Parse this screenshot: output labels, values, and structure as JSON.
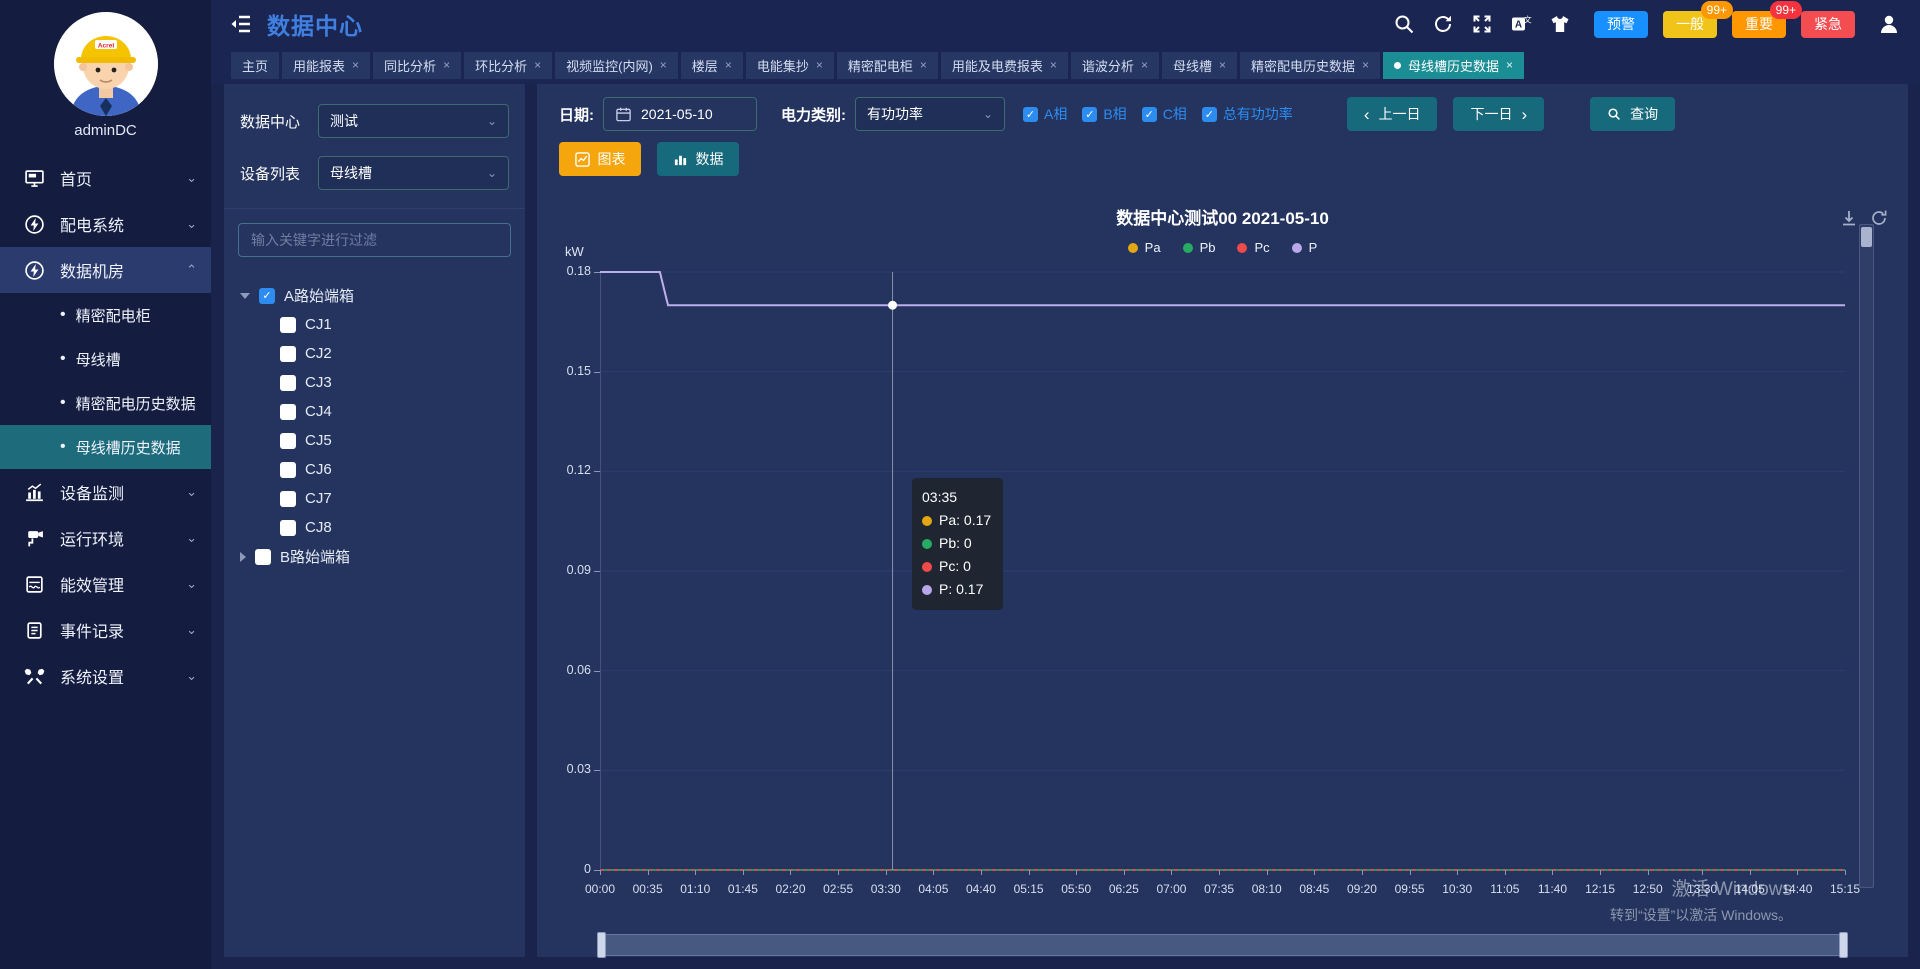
{
  "header": {
    "title": "数据中心",
    "alarm_buttons": [
      {
        "label": "预警",
        "color": "#1890ff"
      },
      {
        "label": "一般",
        "color": "#f0c419",
        "badge": "99+",
        "badge_color": "#ff9800"
      },
      {
        "label": "重要",
        "color": "#ff9800",
        "badge": "99+",
        "badge_color": "#f5333f"
      },
      {
        "label": "紧急",
        "color": "#f34d51"
      }
    ]
  },
  "tabs": [
    {
      "label": "主页",
      "closable": false,
      "active": false
    },
    {
      "label": "用能报表",
      "closable": true,
      "active": false
    },
    {
      "label": "同比分析",
      "closable": true,
      "active": false
    },
    {
      "label": "环比分析",
      "closable": true,
      "active": false
    },
    {
      "label": "视频监控(内网)",
      "closable": true,
      "active": false
    },
    {
      "label": "楼层",
      "closable": true,
      "active": false
    },
    {
      "label": "电能集抄",
      "closable": true,
      "active": false
    },
    {
      "label": "精密配电柜",
      "closable": true,
      "active": false
    },
    {
      "label": "用能及电费报表",
      "closable": true,
      "active": false
    },
    {
      "label": "谐波分析",
      "closable": true,
      "active": false
    },
    {
      "label": "母线槽",
      "closable": true,
      "active": false
    },
    {
      "label": "精密配电历史数据",
      "closable": true,
      "active": false
    },
    {
      "label": "母线槽历史数据",
      "closable": true,
      "active": true
    }
  ],
  "sidebar": {
    "username": "adminDC",
    "menu": [
      {
        "label": "首页",
        "icon": "home",
        "expanded": false
      },
      {
        "label": "配电系统",
        "icon": "power",
        "expanded": false
      },
      {
        "label": "数据机房",
        "icon": "power",
        "expanded": true,
        "children": [
          "精密配电柜",
          "母线槽",
          "精密配电历史数据",
          "母线槽历史数据"
        ],
        "active_child": "母线槽历史数据"
      },
      {
        "label": "设备监测",
        "icon": "chart",
        "expanded": false
      },
      {
        "label": "运行环境",
        "icon": "env",
        "expanded": false
      },
      {
        "label": "能效管理",
        "icon": "energy",
        "expanded": false
      },
      {
        "label": "事件记录",
        "icon": "record",
        "expanded": false
      },
      {
        "label": "系统设置",
        "icon": "settings",
        "expanded": false
      }
    ]
  },
  "device_panel": {
    "rows": [
      {
        "label": "数据中心",
        "value": "测试"
      },
      {
        "label": "设备列表",
        "value": "母线槽"
      }
    ],
    "search_placeholder": "输入关键字进行过滤",
    "tree": [
      {
        "label": "A路始端箱",
        "checked": true,
        "expanded": true,
        "children": [
          "CJ1",
          "CJ2",
          "CJ3",
          "CJ4",
          "CJ5",
          "CJ6",
          "CJ7",
          "CJ8"
        ]
      },
      {
        "label": "B路始端箱",
        "checked": false,
        "expanded": false,
        "children": []
      }
    ]
  },
  "toolbar": {
    "date_label": "日期:",
    "date_value": "2021-05-10",
    "type_label": "电力类别:",
    "type_value": "有功功率",
    "phases": [
      "A相",
      "B相",
      "C相",
      "总有功功率"
    ],
    "prev_button": "上一日",
    "next_button": "下一日",
    "query_button": "查询",
    "chart_view_button": "图表",
    "data_view_button": "数据"
  },
  "chart_data": {
    "type": "line",
    "title": "数据中心测试00  2021-05-10",
    "ylabel": "kW",
    "ylim": [
      0,
      0.18
    ],
    "y_ticks": [
      {
        "label": "0.18",
        "value": 0.18
      },
      {
        "label": "0.15",
        "value": 0.15
      },
      {
        "label": "0.12",
        "value": 0.12
      },
      {
        "label": "0.09",
        "value": 0.09
      },
      {
        "label": "0.06",
        "value": 0.06
      },
      {
        "label": "0.03",
        "value": 0.03
      },
      {
        "label": "0",
        "value": 0
      }
    ],
    "x_total_minutes": 915,
    "x_labels": [
      {
        "label": "00:00",
        "m": 0
      },
      {
        "label": "00:35",
        "m": 35
      },
      {
        "label": "01:10",
        "m": 70
      },
      {
        "label": "01:45",
        "m": 105
      },
      {
        "label": "02:20",
        "m": 140
      },
      {
        "label": "02:55",
        "m": 175
      },
      {
        "label": "03:30",
        "m": 210
      },
      {
        "label": "04:05",
        "m": 245
      },
      {
        "label": "04:40",
        "m": 280
      },
      {
        "label": "05:15",
        "m": 315
      },
      {
        "label": "05:50",
        "m": 350
      },
      {
        "label": "06:25",
        "m": 385
      },
      {
        "label": "07:00",
        "m": 420
      },
      {
        "label": "07:35",
        "m": 455
      },
      {
        "label": "08:10",
        "m": 490
      },
      {
        "label": "08:45",
        "m": 525
      },
      {
        "label": "09:20",
        "m": 560
      },
      {
        "label": "09:55",
        "m": 595
      },
      {
        "label": "10:30",
        "m": 630
      },
      {
        "label": "11:05",
        "m": 665
      },
      {
        "label": "11:40",
        "m": 700
      },
      {
        "label": "12:15",
        "m": 735
      },
      {
        "label": "12:50",
        "m": 770
      },
      {
        "label": "13:30",
        "m": 810
      },
      {
        "label": "14:05",
        "m": 845
      },
      {
        "label": "14:40",
        "m": 880
      },
      {
        "label": "15:15",
        "m": 915
      }
    ],
    "series": [
      {
        "name": "Pb",
        "color": "#27ab62",
        "width": 1.5,
        "dash": "",
        "points": [
          [
            0,
            0
          ],
          [
            915,
            0
          ]
        ]
      },
      {
        "name": "Pc",
        "color": "#ef4b4b",
        "width": 1.5,
        "dash": "4 3",
        "points": [
          [
            0,
            0
          ],
          [
            915,
            0
          ]
        ]
      },
      {
        "name": "Pa",
        "color": "#e2a712",
        "width": 1.5,
        "dash": "",
        "points": [
          [
            0,
            0.18
          ],
          [
            44,
            0.18
          ],
          [
            50,
            0.17
          ],
          [
            915,
            0.17
          ]
        ]
      },
      {
        "name": "P",
        "color": "#bfaeee",
        "width": 2,
        "dash": "",
        "points": [
          [
            0,
            0.18
          ],
          [
            44,
            0.18
          ],
          [
            50,
            0.17
          ],
          [
            915,
            0.17
          ]
        ]
      }
    ],
    "legend": [
      "Pa",
      "Pb",
      "Pc",
      "P"
    ],
    "legend_colors": {
      "Pa": "#e2a712",
      "Pb": "#27ab62",
      "Pc": "#ef4b4b",
      "P": "#b9a7ea"
    },
    "tooltip": {
      "time": "03:35",
      "minutes": 215,
      "marker_value": 0.17,
      "rows": [
        {
          "name": "Pa",
          "value": "0.17",
          "color": "#e2a712"
        },
        {
          "name": "Pb",
          "value": "0",
          "color": "#27ab62"
        },
        {
          "name": "Pc",
          "value": "0",
          "color": "#ef4b4b"
        },
        {
          "name": "P",
          "value": "0.17",
          "color": "#b9a7ea"
        }
      ]
    }
  },
  "watermark": {
    "line1": "激活 Windows",
    "line2": "转到“设置”以激活 Windows。"
  }
}
